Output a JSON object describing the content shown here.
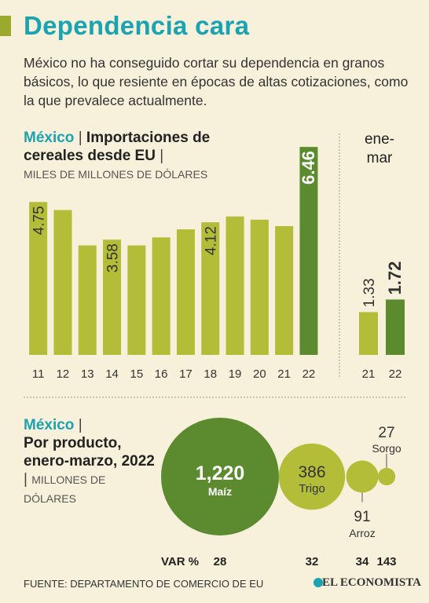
{
  "header": {
    "title": "Dependencia cara",
    "description": "México no ha conseguido cortar su dependencia en granos básicos, lo que resiente en épocas de altas cotizaciones, como la que prevalece actualmente."
  },
  "chart_data": [
    {
      "type": "bar",
      "title_country": "México",
      "title": "Importaciones de cereales desde EU",
      "unit": "MILES DE MILLONES DE DÓLARES",
      "categories": [
        "11",
        "12",
        "13",
        "14",
        "15",
        "16",
        "17",
        "18",
        "19",
        "20",
        "21",
        "22"
      ],
      "values": [
        4.75,
        4.5,
        3.4,
        3.58,
        3.4,
        3.65,
        3.9,
        4.12,
        4.3,
        4.2,
        4.0,
        6.46
      ],
      "value_labels": [
        "4.75",
        null,
        null,
        "3.58",
        null,
        null,
        null,
        "4.12",
        null,
        null,
        null,
        "6.46"
      ],
      "colors": [
        "#b3bd37",
        "#b3bd37",
        "#b3bd37",
        "#b3bd37",
        "#b3bd37",
        "#b3bd37",
        "#b3bd37",
        "#b3bd37",
        "#b3bd37",
        "#b3bd37",
        "#b3bd37",
        "#5b8a2f"
      ]
    },
    {
      "type": "bar",
      "title": "ene-mar",
      "categories": [
        "21",
        "22"
      ],
      "values": [
        1.33,
        1.72
      ],
      "value_labels": [
        "1.33",
        "1.72"
      ],
      "colors": [
        "#b3bd37",
        "#5b8a2f"
      ]
    },
    {
      "type": "bubble",
      "title_country": "México",
      "title": "Por producto, enero-marzo, 2022",
      "unit": "MILLONES DE DÓLARES",
      "categories": [
        "Maíz",
        "Trigo",
        "Arroz",
        "Sorgo"
      ],
      "values": [
        1220,
        386,
        91,
        27
      ],
      "value_labels": [
        "1,220",
        "386",
        "91",
        "27"
      ],
      "colors": [
        "#5b8a2f",
        "#b3bd37",
        "#b3bd37",
        "#b3bd37"
      ],
      "change_label": "VAR %",
      "change": [
        28,
        32,
        34,
        143
      ]
    }
  ],
  "footer": {
    "source": "FUENTE: DEPARTAMENTO DE COMERCIO DE EU",
    "brand": "EL ECONOMISTA"
  }
}
